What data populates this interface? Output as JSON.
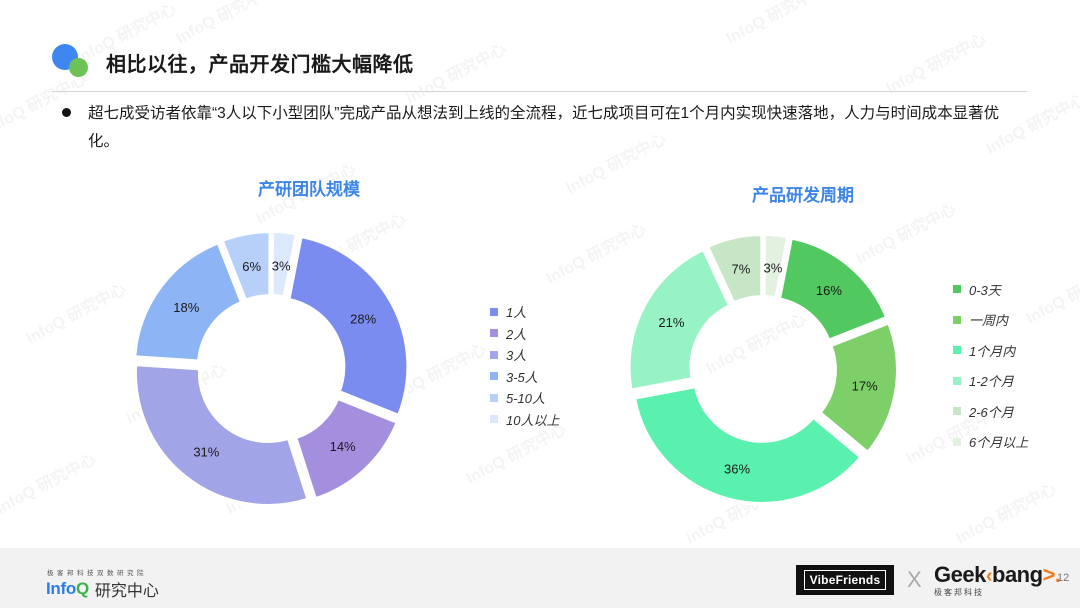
{
  "header": {
    "title": "相比以往，产品开发门槛大幅降低"
  },
  "bullet": {
    "text": "超七成受访者依靠“3人以下小型团队”完成产品从想法到上线的全流程，近七成项目可在1个月内实现快速落地，人力与时间成本显著优化。"
  },
  "colors": {
    "title_blue": "#3d86e6",
    "team_1": "#7b8cf0",
    "team_2": "#a48fdf",
    "team_3": "#a2a4e8",
    "team_3_5": "#8db4f5",
    "team_5_10": "#b6d0fa",
    "team_10_plus": "#dce8fd",
    "cycle_0_3d": "#52c860",
    "cycle_week": "#7dcf67",
    "cycle_1m": "#5af0ad",
    "cycle_1_2m": "#97f2c4",
    "cycle_2_6m": "#c6e6c6",
    "cycle_6m_plus": "#e2f1e0"
  },
  "chart_data": [
    {
      "type": "pie",
      "variant": "donut",
      "title": "产研团队规模",
      "categories": [
        "1人",
        "2人",
        "3人",
        "3-5人",
        "5-10人",
        "10人以上"
      ],
      "values": [
        28,
        14,
        31,
        18,
        6,
        3
      ],
      "unit": "%",
      "colors": [
        "#7b8cf0",
        "#a48fdf",
        "#a2a4e8",
        "#8db4f5",
        "#b6d0fa",
        "#dce8fd"
      ],
      "legend_position": "right",
      "start_angle_deg": 11,
      "direction": "clockwise"
    },
    {
      "type": "pie",
      "variant": "donut",
      "title": "产品研发周期",
      "categories": [
        "0-3天",
        "一周内",
        "1个月内",
        "1-2个月",
        "2-6个月",
        "6个月以上"
      ],
      "values": [
        16,
        17,
        36,
        21,
        7,
        3
      ],
      "unit": "%",
      "colors": [
        "#52c860",
        "#7dcf67",
        "#5af0ad",
        "#97f2c4",
        "#c6e6c6",
        "#e2f1e0"
      ],
      "legend_position": "right",
      "start_angle_deg": 11,
      "direction": "clockwise"
    }
  ],
  "charts": {
    "left": {
      "title": "产研团队规模",
      "legend": [
        "1人",
        "2人",
        "3人",
        "3-5人",
        "5-10人",
        "10人以上"
      ],
      "labels": [
        "28%",
        "14%",
        "31%",
        "18%",
        "6%",
        "3%"
      ]
    },
    "right": {
      "title": "产品研发周期",
      "legend": [
        "0-3天",
        "一周内",
        "1个月内",
        "1-2个月",
        "2-6个月",
        "6个月以上"
      ],
      "labels": [
        "16%",
        "17%",
        "36%",
        "21%",
        "7%",
        "3%"
      ]
    }
  },
  "footer": {
    "infoq_sub": "极客邦科技双数研究院",
    "infoq_word_a": "Info",
    "infoq_word_b": "Q",
    "infoq_cn": "研究中心",
    "vibe": "VibeFriends",
    "x": "X",
    "geek_a": "Geek",
    "geek_b": "bang",
    "geek_arrow": ">.",
    "geek_sub": "极客邦科技",
    "page_number": "12"
  },
  "watermark": "InfoQ 研究中心"
}
